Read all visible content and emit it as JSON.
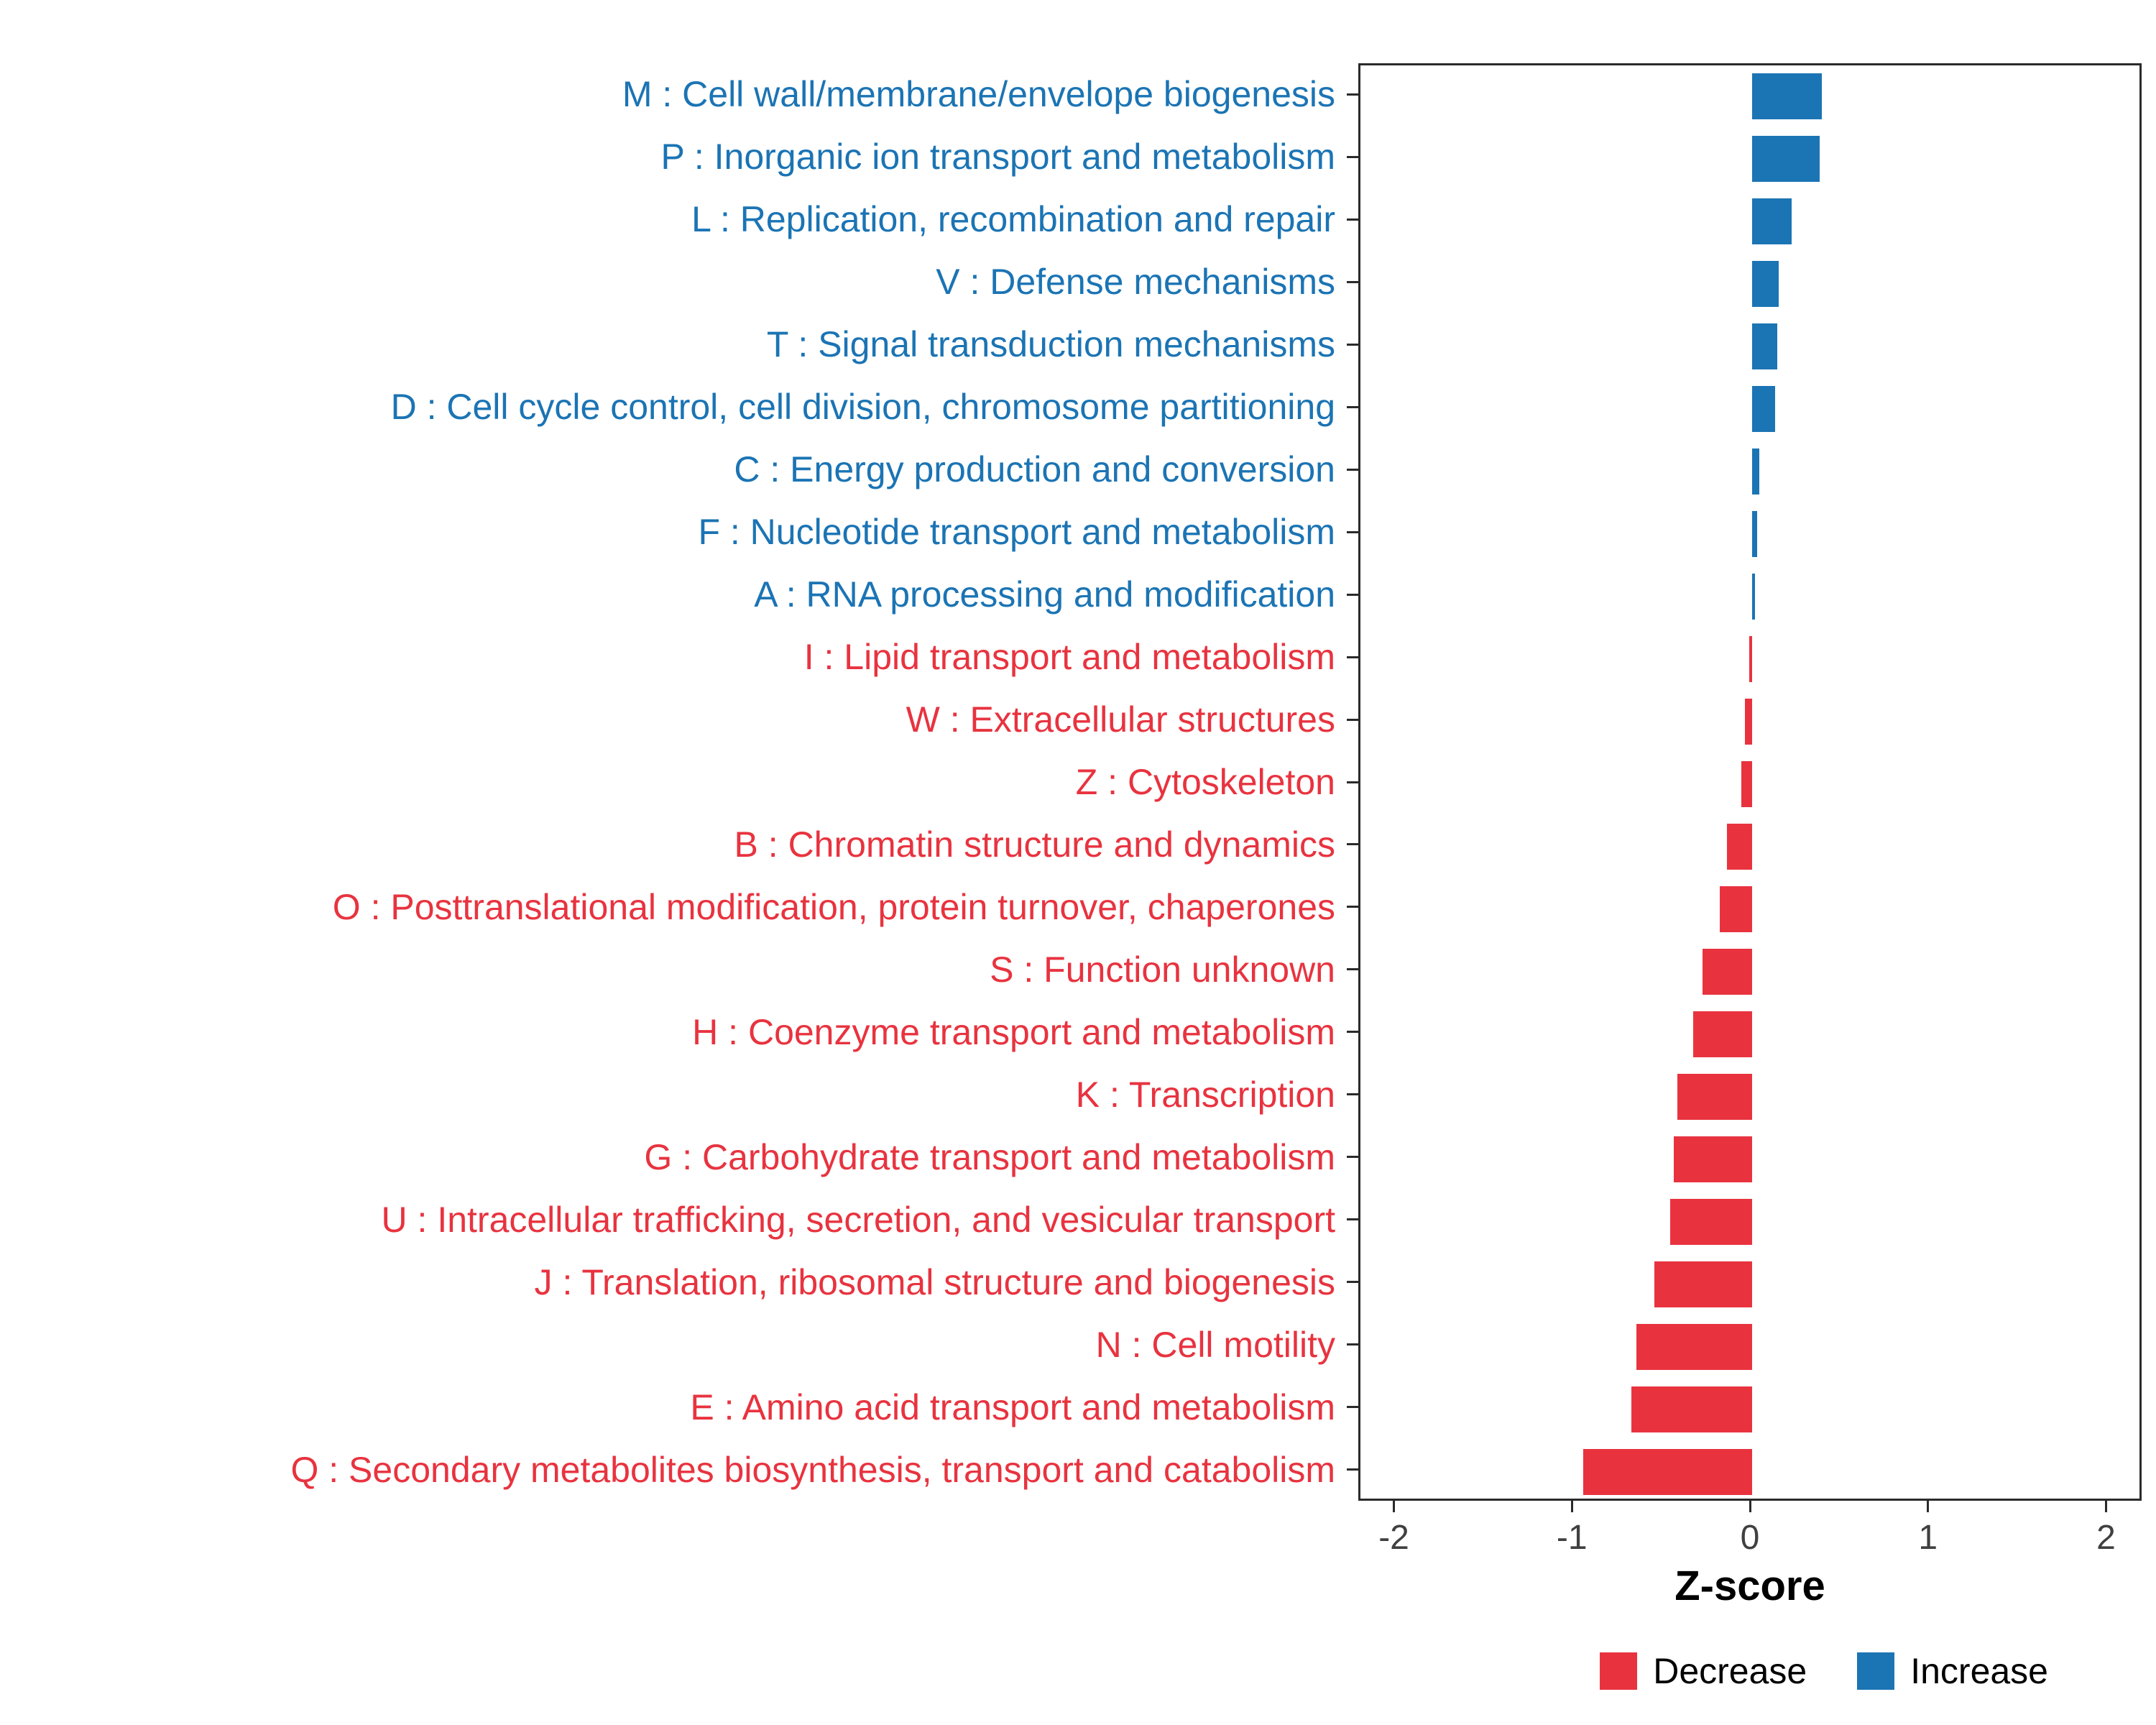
{
  "colors": {
    "increase": "#1B74B4",
    "decrease": "#E8333F",
    "axis_text": "#404040",
    "panel_border": "#2b2b2b"
  },
  "axis": {
    "xlabel": "Z-score"
  },
  "legend": {
    "decrease_label": "Decrease",
    "increase_label": "Increase"
  },
  "chart_data": {
    "type": "bar",
    "orientation": "horizontal",
    "title": "",
    "xlabel": "Z-score",
    "xlim": [
      -2.2,
      2.2
    ],
    "xticks": [
      -2,
      -1,
      0,
      1,
      2
    ],
    "grid": false,
    "legend_position": "bottom-right",
    "categories": [
      "M : Cell wall/membrane/envelope biogenesis",
      "P : Inorganic ion transport and metabolism",
      "L : Replication, recombination and repair",
      "V : Defense mechanisms",
      "T : Signal transduction mechanisms",
      "D : Cell cycle control, cell division, chromosome partitioning",
      "C : Energy production and conversion",
      "F : Nucleotide transport and metabolism",
      "A : RNA processing and modification",
      "I : Lipid transport and metabolism",
      "W : Extracellular structures",
      "Z : Cytoskeleton",
      "B : Chromatin structure and dynamics",
      "O : Posttranslational modification, protein turnover, chaperones",
      "S : Function unknown",
      "H : Coenzyme transport and metabolism",
      "K : Transcription",
      "G : Carbohydrate transport and metabolism",
      "U : Intracellular trafficking, secretion, and vesicular transport",
      "J : Translation, ribosomal structure and biogenesis",
      "N : Cell motility",
      "E : Amino acid transport and metabolism",
      "Q : Secondary metabolites biosynthesis, transport and catabolism"
    ],
    "values": [
      0.39,
      0.38,
      0.22,
      0.15,
      0.14,
      0.13,
      0.04,
      0.03,
      0.015,
      -0.015,
      -0.04,
      -0.06,
      -0.14,
      -0.18,
      -0.28,
      -0.33,
      -0.42,
      -0.44,
      -0.46,
      -0.55,
      -0.65,
      -0.68,
      -0.95
    ],
    "directions": [
      "increase",
      "increase",
      "increase",
      "increase",
      "increase",
      "increase",
      "increase",
      "increase",
      "increase",
      "decrease",
      "decrease",
      "decrease",
      "decrease",
      "decrease",
      "decrease",
      "decrease",
      "decrease",
      "decrease",
      "decrease",
      "decrease",
      "decrease",
      "decrease",
      "decrease"
    ]
  }
}
